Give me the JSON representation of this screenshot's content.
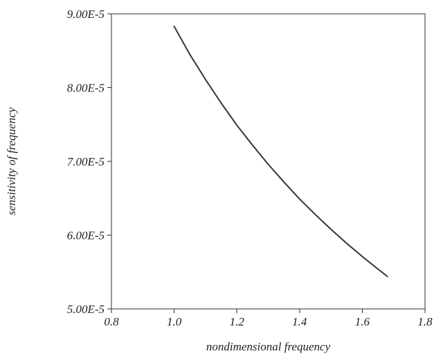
{
  "chart_data": {
    "type": "line",
    "title": "",
    "xlabel": "nondimensional frequency",
    "ylabel": "sensitivity of frequency",
    "xlim": [
      0.8,
      1.8
    ],
    "ylim": [
      5e-05,
      9e-05
    ],
    "x_ticks": [
      0.8,
      1.0,
      1.2,
      1.4,
      1.6,
      1.8
    ],
    "x_tick_labels": [
      "0.8",
      "1.0",
      "1.2",
      "1.4",
      "1.6",
      "1.8"
    ],
    "y_ticks": [
      5e-05,
      6e-05,
      7e-05,
      8e-05,
      9e-05
    ],
    "y_tick_labels": [
      "5.00E-5",
      "6.00E-5",
      "7.00E-5",
      "8.00E-5",
      "9.00E-5"
    ],
    "grid": false,
    "legend": "none",
    "series": [
      {
        "color": "#333333",
        "x": [
          1.0,
          1.05,
          1.1,
          1.15,
          1.2,
          1.25,
          1.3,
          1.35,
          1.4,
          1.45,
          1.5,
          1.55,
          1.6,
          1.65,
          1.68
        ],
        "y": [
          8.83e-05,
          8.45e-05,
          8.11e-05,
          7.79e-05,
          7.49e-05,
          7.22e-05,
          6.96e-05,
          6.72e-05,
          6.49e-05,
          6.28e-05,
          6.08e-05,
          5.89e-05,
          5.71e-05,
          5.54e-05,
          5.44e-05
        ]
      }
    ]
  }
}
